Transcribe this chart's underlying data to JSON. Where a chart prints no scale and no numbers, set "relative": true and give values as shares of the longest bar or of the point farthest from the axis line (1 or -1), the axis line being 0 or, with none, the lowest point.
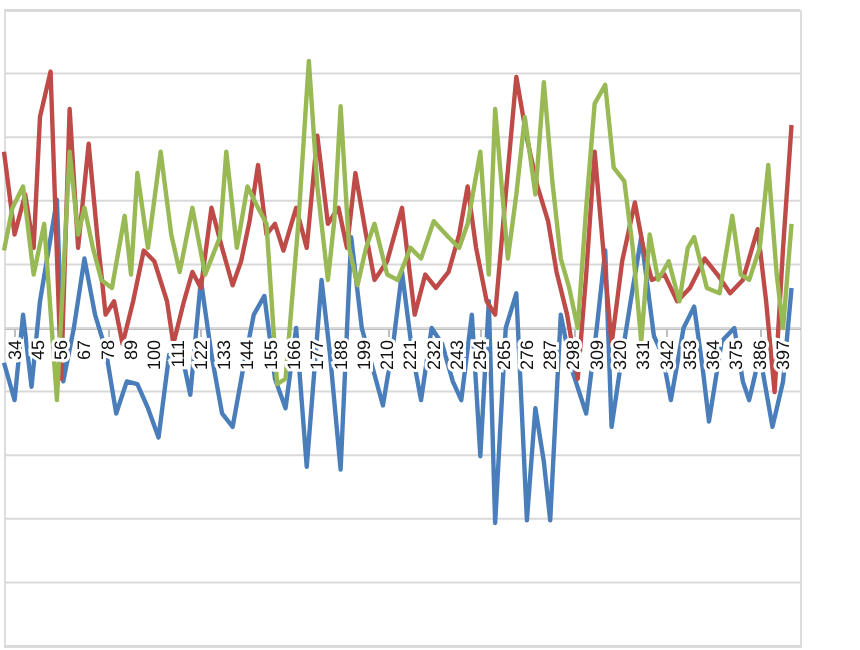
{
  "chart_data": {
    "type": "line",
    "relative": true,
    "grid": "y",
    "line_style": "solid",
    "marker": "none",
    "xlim": [
      29,
      405
    ],
    "xticks": [
      34,
      45,
      56,
      67,
      78,
      89,
      100,
      111,
      122,
      133,
      144,
      155,
      166,
      177,
      188,
      199,
      210,
      221,
      232,
      243,
      254,
      265,
      276,
      287,
      298,
      309,
      320,
      331,
      342,
      353,
      364,
      375,
      386,
      397
    ],
    "series": [
      {
        "color": "#4a7ebb",
        "x": [
          29,
          34,
          38,
          42,
          46,
          50,
          54,
          57,
          62,
          67,
          72,
          77,
          82,
          87,
          92,
          97,
          102,
          107,
          112,
          117,
          122,
          127,
          132,
          137,
          142,
          147,
          152,
          157,
          162,
          167,
          172,
          179,
          183,
          188,
          193,
          198,
          208,
          213,
          217,
          222,
          226,
          231,
          236,
          241,
          245,
          250,
          254,
          258,
          261,
          266,
          271,
          276,
          280,
          284,
          287,
          292,
          297,
          304,
          309,
          313,
          316,
          321,
          325,
          330,
          336,
          340,
          344,
          350,
          355,
          359,
          362,
          368,
          374,
          378,
          381,
          386,
          392,
          397,
          401
        ],
        "values": [
          -0.13,
          -0.27,
          0.05,
          -0.22,
          0.1,
          0.29,
          0.48,
          -0.2,
          0.0,
          0.26,
          0.05,
          -0.08,
          -0.32,
          -0.2,
          -0.21,
          -0.3,
          -0.41,
          -0.1,
          -0.06,
          -0.25,
          0.18,
          -0.1,
          -0.32,
          -0.37,
          -0.15,
          0.05,
          0.12,
          -0.19,
          -0.3,
          0.0,
          -0.52,
          0.18,
          -0.1,
          -0.53,
          0.34,
          0.0,
          -0.29,
          -0.05,
          0.21,
          -0.1,
          -0.27,
          0.0,
          -0.06,
          -0.2,
          -0.27,
          0.05,
          -0.48,
          0.1,
          -0.73,
          0.0,
          0.13,
          -0.72,
          -0.3,
          -0.5,
          -0.72,
          0.05,
          -0.15,
          -0.32,
          0.0,
          0.29,
          -0.37,
          -0.1,
          0.1,
          0.34,
          -0.03,
          -0.1,
          -0.27,
          0.0,
          0.08,
          -0.15,
          -0.35,
          -0.05,
          0.0,
          -0.2,
          -0.27,
          -0.1,
          -0.37,
          -0.2,
          0.15
        ]
      },
      {
        "color": "#be4b48",
        "x": [
          29,
          34,
          39,
          43,
          46,
          51,
          56,
          60,
          64,
          69,
          73,
          77,
          81,
          85,
          90,
          95,
          100,
          106,
          109,
          114,
          118,
          122,
          127,
          132,
          137,
          141,
          145,
          149,
          153,
          157,
          161,
          167,
          172,
          177,
          182,
          187,
          191,
          195,
          200,
          204,
          210,
          217,
          223,
          228,
          233,
          239,
          244,
          248,
          252,
          257,
          261,
          266,
          271,
          276,
          281,
          286,
          290,
          295,
          300,
          304,
          308,
          312,
          316,
          321,
          327,
          331,
          335,
          341,
          347,
          353,
          360,
          366,
          372,
          378,
          385,
          389,
          393,
          397,
          401
        ],
        "values": [
          0.66,
          0.35,
          0.5,
          0.3,
          0.79,
          0.96,
          -0.19,
          0.82,
          0.3,
          0.69,
          0.35,
          0.05,
          0.1,
          -0.06,
          0.1,
          0.29,
          0.25,
          0.1,
          -0.06,
          0.1,
          0.21,
          0.15,
          0.45,
          0.3,
          0.16,
          0.25,
          0.4,
          0.61,
          0.35,
          0.39,
          0.29,
          0.45,
          0.3,
          0.72,
          0.39,
          0.45,
          0.3,
          0.58,
          0.35,
          0.18,
          0.25,
          0.45,
          0.05,
          0.2,
          0.15,
          0.21,
          0.35,
          0.53,
          0.3,
          0.1,
          0.05,
          0.5,
          0.94,
          0.71,
          0.53,
          0.4,
          0.21,
          0.05,
          -0.19,
          0.2,
          0.66,
          0.3,
          -0.06,
          0.25,
          0.47,
          0.3,
          0.18,
          0.2,
          0.1,
          0.15,
          0.26,
          0.2,
          0.13,
          0.18,
          0.37,
          0.1,
          -0.24,
          0.3,
          0.76
        ]
      },
      {
        "color": "#98b954",
        "x": [
          29,
          33,
          38,
          43,
          48,
          54,
          60,
          64,
          67,
          71,
          75,
          80,
          86,
          89,
          92,
          97,
          103,
          108,
          112,
          118,
          124,
          131,
          134,
          139,
          144,
          149,
          153,
          158,
          162,
          168,
          173,
          177,
          182,
          185,
          188,
          192,
          196,
          200,
          204,
          210,
          215,
          221,
          226,
          232,
          239,
          244,
          248,
          254,
          258,
          261,
          267,
          271,
          275,
          280,
          284,
          288,
          292,
          296,
          300,
          304,
          308,
          313,
          317,
          322,
          326,
          330,
          334,
          338,
          343,
          348,
          352,
          355,
          361,
          367,
          373,
          377,
          381,
          386,
          390,
          394,
          397,
          401
        ],
        "values": [
          0.29,
          0.45,
          0.53,
          0.2,
          0.39,
          -0.27,
          0.66,
          0.35,
          0.45,
          0.3,
          0.18,
          0.15,
          0.42,
          0.2,
          0.58,
          0.3,
          0.66,
          0.35,
          0.21,
          0.45,
          0.2,
          0.34,
          0.66,
          0.3,
          0.53,
          0.45,
          0.39,
          -0.21,
          -0.19,
          0.39,
          1.0,
          0.53,
          0.18,
          0.4,
          0.83,
          0.3,
          0.16,
          0.3,
          0.39,
          0.2,
          0.18,
          0.3,
          0.26,
          0.4,
          0.34,
          0.3,
          0.39,
          0.66,
          0.2,
          0.82,
          0.26,
          0.5,
          0.79,
          0.5,
          0.92,
          0.55,
          0.26,
          0.15,
          0.0,
          0.45,
          0.84,
          0.91,
          0.6,
          0.55,
          0.3,
          -0.05,
          0.35,
          0.18,
          0.25,
          0.1,
          0.3,
          0.34,
          0.15,
          0.13,
          0.42,
          0.2,
          0.18,
          0.3,
          0.61,
          0.2,
          0.0,
          0.39
        ]
      }
    ]
  }
}
